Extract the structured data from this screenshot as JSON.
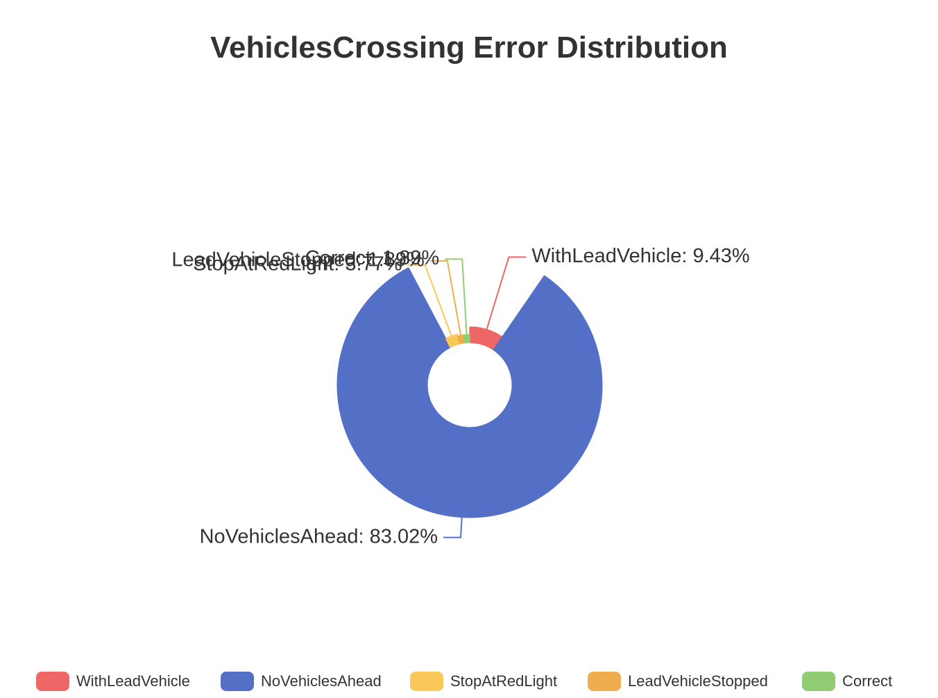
{
  "chart_data": {
    "type": "pie",
    "title": "VehiclesCrossing Error Distribution",
    "rose_type": "radius",
    "legend_position": "bottom",
    "series": [
      {
        "data": [
          {
            "name": "WithLeadVehicle",
            "value": 9.43,
            "label": "WithLeadVehicle: 9.43%",
            "color": "#ee6666"
          },
          {
            "name": "NoVehiclesAhead",
            "value": 83.02,
            "label": "NoVehiclesAhead: 83.02%",
            "color": "#5470c6"
          },
          {
            "name": "StopAtRedLight",
            "value": 3.77,
            "label": "StopAtRedLight: 3.77%",
            "color": "#fac858"
          },
          {
            "name": "LeadVehicleStopped",
            "value": 1.89,
            "label": "LeadVehicleStopped: 1.89%",
            "color": "#f0ad4e"
          },
          {
            "name": "Correct",
            "value": 1.89,
            "label": "Correct: 1.89%",
            "color": "#91cc75"
          }
        ]
      }
    ]
  }
}
